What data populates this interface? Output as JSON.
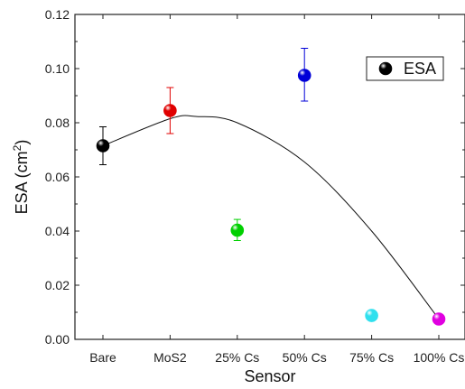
{
  "chart_data": {
    "type": "scatter",
    "title": "",
    "xlabel": "Sensor",
    "ylabel": "ESA (cm",
    "ylabel_sup": "2",
    "ylabel_end": ")",
    "categories": [
      "Bare",
      "MoS2",
      "25% Cs",
      "50% Cs",
      "75% Cs",
      "100% Cs"
    ],
    "ylim": [
      0,
      0.12
    ],
    "yticks": [
      "0.00",
      "0.02",
      "0.04",
      "0.06",
      "0.08",
      "0.10",
      "0.12"
    ],
    "grid": false,
    "legend_position": "top-right",
    "series": [
      {
        "name": "ESA",
        "values": [
          0.0715,
          0.0845,
          0.0403,
          0.0975,
          0.0088,
          0.0075
        ],
        "err_low": [
          0.0645,
          0.076,
          0.0365,
          0.088,
          null,
          null
        ],
        "err_high": [
          0.0785,
          0.093,
          0.0443,
          0.1075,
          null,
          null
        ],
        "colors": [
          "#000000",
          "#e00000",
          "#00d000",
          "#0000d8",
          "#30e0ee",
          "#e000e0"
        ]
      }
    ],
    "fit_line": {
      "type": "polynomial",
      "x_index": [
        0,
        1,
        1.4,
        2,
        3,
        4,
        5
      ],
      "y": [
        0.0715,
        0.0815,
        0.0823,
        0.08,
        0.0655,
        0.04,
        0.0075
      ]
    }
  }
}
